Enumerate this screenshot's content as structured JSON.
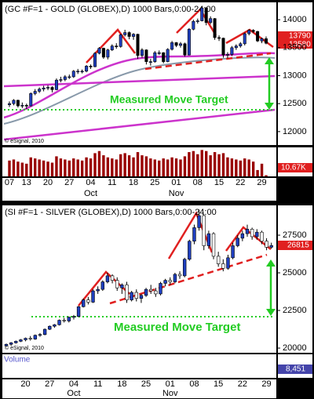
{
  "chart_data": [
    {
      "type": "candlestick",
      "title": "(GC #F=1 - GOLD (GLOBEX),D) 1000 Bars,0:00-24:00",
      "categories": [
        "07",
        null,
        null,
        null,
        "13",
        null,
        null,
        null,
        null,
        "20",
        null,
        null,
        null,
        null,
        "27",
        null,
        null,
        null,
        null,
        "04",
        null,
        null,
        null,
        null,
        "11",
        null,
        null,
        null,
        null,
        "18",
        null,
        null,
        null,
        null,
        "25",
        null,
        null,
        null,
        null,
        "01",
        null,
        null,
        null,
        null,
        "08",
        null,
        null,
        null,
        null,
        "15",
        null,
        null,
        null,
        null,
        "22",
        null,
        null,
        null,
        null,
        "29",
        null
      ],
      "months": [
        null,
        null,
        null,
        null,
        null,
        null,
        null,
        null,
        null,
        null,
        null,
        null,
        null,
        null,
        null,
        null,
        null,
        null,
        null,
        "Oct",
        null,
        null,
        null,
        null,
        null,
        null,
        null,
        null,
        null,
        null,
        null,
        null,
        null,
        null,
        null,
        null,
        null,
        null,
        null,
        "Nov",
        null,
        null,
        null,
        null,
        null,
        null,
        null,
        null,
        null,
        null,
        null,
        null,
        null,
        null,
        null,
        null,
        null,
        null,
        null,
        null,
        null
      ],
      "ohlc": [
        [
          12480,
          12540,
          12440,
          12500
        ],
        [
          12500,
          12580,
          12470,
          12560
        ],
        [
          12560,
          12570,
          12430,
          12460
        ],
        [
          12460,
          12520,
          12420,
          12470
        ],
        [
          12470,
          12500,
          12400,
          12460
        ],
        [
          12460,
          12700,
          12450,
          12680
        ],
        [
          12680,
          12760,
          12650,
          12720
        ],
        [
          12720,
          12790,
          12690,
          12760
        ],
        [
          12760,
          12820,
          12720,
          12780
        ],
        [
          12780,
          12830,
          12740,
          12790
        ],
        [
          12790,
          12810,
          12700,
          12750
        ],
        [
          12750,
          12950,
          12740,
          12920
        ],
        [
          12920,
          12980,
          12880,
          12930
        ],
        [
          12930,
          13010,
          12900,
          12980
        ],
        [
          12980,
          13020,
          12940,
          12980
        ],
        [
          12980,
          13100,
          12960,
          13080
        ],
        [
          13080,
          13120,
          13030,
          13080
        ],
        [
          13080,
          13110,
          13040,
          13080
        ],
        [
          13080,
          13190,
          13060,
          13170
        ],
        [
          13170,
          13200,
          13120,
          13160
        ],
        [
          13160,
          13420,
          13150,
          13400
        ],
        [
          13400,
          13510,
          13380,
          13490
        ],
        [
          13490,
          13500,
          13300,
          13330
        ],
        [
          13330,
          13480,
          13290,
          13460
        ],
        [
          13460,
          13560,
          13440,
          13530
        ],
        [
          13530,
          13580,
          13480,
          13520
        ],
        [
          13520,
          13750,
          13500,
          13730
        ],
        [
          13730,
          13820,
          13700,
          13770
        ],
        [
          13770,
          13790,
          13650,
          13700
        ],
        [
          13700,
          13760,
          13640,
          13740
        ],
        [
          13740,
          13750,
          13300,
          13360
        ],
        [
          13360,
          13490,
          13320,
          13460
        ],
        [
          13460,
          13470,
          13200,
          13250
        ],
        [
          13250,
          13300,
          13180,
          13250
        ],
        [
          13250,
          13440,
          13230,
          13410
        ],
        [
          13410,
          13450,
          13370,
          13410
        ],
        [
          13410,
          13420,
          13220,
          13250
        ],
        [
          13250,
          13490,
          13240,
          13470
        ],
        [
          13470,
          13620,
          13450,
          13590
        ],
        [
          13590,
          13600,
          13510,
          13540
        ],
        [
          13540,
          13600,
          13500,
          13570
        ],
        [
          13570,
          13590,
          13340,
          13370
        ],
        [
          13370,
          13850,
          13360,
          13830
        ],
        [
          13830,
          14000,
          13810,
          13970
        ],
        [
          13970,
          14020,
          13930,
          13980
        ],
        [
          13980,
          14240,
          13970,
          14210
        ],
        [
          14210,
          14220,
          13900,
          13950
        ],
        [
          13950,
          14060,
          13920,
          14020
        ],
        [
          14020,
          14030,
          13640,
          13680
        ],
        [
          13680,
          13720,
          13620,
          13670
        ],
        [
          13670,
          13680,
          13320,
          13370
        ],
        [
          13370,
          13420,
          13310,
          13380
        ],
        [
          13380,
          13530,
          13350,
          13500
        ],
        [
          13500,
          13560,
          13460,
          13530
        ],
        [
          13530,
          13600,
          13500,
          13570
        ],
        [
          13570,
          13770,
          13540,
          13750
        ],
        [
          13750,
          13830,
          13720,
          13810
        ],
        [
          13810,
          13830,
          13760,
          13790
        ],
        [
          13790,
          13800,
          13600,
          13620
        ],
        [
          13620,
          13680,
          13580,
          13660
        ],
        [
          13660,
          13700,
          13560,
          13580
        ]
      ],
      "up_color": "#1f3fbf",
      "down_color": "#000000",
      "ylim": [
        11760,
        14310
      ],
      "yticks": [
        12000,
        12500,
        13000,
        13500,
        14000
      ],
      "readouts": [
        "13790",
        "13580"
      ],
      "annotation": "Measured Move Target",
      "copyright": "© eSignal, 2010",
      "volume": {
        "values": [
          150,
          160,
          140,
          130,
          120,
          180,
          170,
          160,
          150,
          140,
          130,
          190,
          170,
          160,
          150,
          170,
          160,
          150,
          180,
          170,
          220,
          240,
          200,
          180,
          170,
          160,
          210,
          220,
          200,
          180,
          230,
          200,
          190,
          170,
          160,
          150,
          170,
          160,
          180,
          170,
          160,
          190,
          230,
          240,
          210,
          250,
          240,
          200,
          230,
          210,
          220,
          180,
          170,
          160,
          150,
          170,
          160,
          140,
          60,
          120,
          10.67
        ],
        "ylim": [
          0,
          260
        ],
        "color": "#990000",
        "readout": "10.67K"
      }
    },
    {
      "type": "candlestick",
      "title": "(SI #F=1 - SILVER (GLOBEX),D) 1000 Bars,0:00-24:00",
      "categories": [
        null,
        null,
        null,
        null,
        "20",
        null,
        null,
        null,
        null,
        "27",
        null,
        null,
        null,
        null,
        "04",
        null,
        null,
        null,
        null,
        "11",
        null,
        null,
        null,
        null,
        "18",
        null,
        null,
        null,
        null,
        "25",
        null,
        null,
        null,
        null,
        "01",
        null,
        null,
        null,
        null,
        "08",
        null,
        null,
        null,
        null,
        "15",
        null,
        null,
        null,
        null,
        "22",
        null,
        null,
        null,
        null,
        "29",
        null
      ],
      "months": [
        null,
        null,
        null,
        null,
        null,
        null,
        null,
        null,
        null,
        null,
        null,
        null,
        null,
        null,
        "Oct",
        null,
        null,
        null,
        null,
        null,
        null,
        null,
        null,
        null,
        null,
        null,
        null,
        null,
        null,
        null,
        null,
        null,
        null,
        null,
        "Nov",
        null,
        null,
        null,
        null,
        null,
        null,
        null,
        null,
        null,
        null,
        null,
        null,
        null,
        null,
        null,
        null,
        null,
        null,
        null,
        null,
        null
      ],
      "ohlc": [
        [
          20150,
          20300,
          20100,
          20250
        ],
        [
          20250,
          20400,
          20150,
          20350
        ],
        [
          20350,
          20500,
          20300,
          20450
        ],
        [
          20450,
          20600,
          20400,
          20550
        ],
        [
          20550,
          20700,
          20450,
          20650
        ],
        [
          20650,
          20800,
          20500,
          20600
        ],
        [
          20600,
          20900,
          20550,
          20850
        ],
        [
          20850,
          21000,
          20750,
          20900
        ],
        [
          20900,
          21300,
          20850,
          21250
        ],
        [
          21250,
          21500,
          21200,
          21450
        ],
        [
          21450,
          21600,
          21350,
          21550
        ],
        [
          21550,
          21900,
          21500,
          21850
        ],
        [
          21850,
          22000,
          21700,
          21800
        ],
        [
          21800,
          22100,
          21700,
          22050
        ],
        [
          22050,
          22200,
          21900,
          22100
        ],
        [
          22100,
          22800,
          22050,
          22750
        ],
        [
          22750,
          23300,
          22700,
          23200
        ],
        [
          23200,
          23400,
          22900,
          23050
        ],
        [
          23050,
          23900,
          23000,
          23800
        ],
        [
          23800,
          24100,
          23600,
          23900
        ],
        [
          23900,
          24500,
          23800,
          24400
        ],
        [
          24400,
          25000,
          24300,
          24800
        ],
        [
          24800,
          24900,
          24300,
          24500
        ],
        [
          24500,
          24700,
          23800,
          24000
        ],
        [
          24000,
          24300,
          23600,
          24200
        ],
        [
          24200,
          24400,
          23000,
          23200
        ],
        [
          23200,
          23800,
          23100,
          23700
        ],
        [
          23700,
          23900,
          23100,
          23300
        ],
        [
          23300,
          23600,
          23000,
          23500
        ],
        [
          23500,
          24000,
          23400,
          23900
        ],
        [
          23900,
          24200,
          23600,
          23800
        ],
        [
          23800,
          24000,
          23400,
          23600
        ],
        [
          23600,
          24400,
          23500,
          24300
        ],
        [
          24300,
          24600,
          24100,
          24500
        ],
        [
          24500,
          24700,
          24200,
          24400
        ],
        [
          24400,
          25000,
          24300,
          24900
        ],
        [
          24900,
          25100,
          24600,
          24800
        ],
        [
          24800,
          26000,
          24700,
          25900
        ],
        [
          25900,
          27200,
          25800,
          27100
        ],
        [
          27100,
          28200,
          26900,
          28000
        ],
        [
          28000,
          29200,
          27800,
          28800
        ],
        [
          28800,
          28900,
          26500,
          26800
        ],
        [
          26800,
          27800,
          26600,
          27600
        ],
        [
          27600,
          27700,
          25900,
          26100
        ],
        [
          26100,
          26400,
          25400,
          25600
        ],
        [
          25600,
          25900,
          25100,
          25300
        ],
        [
          25300,
          26200,
          25200,
          26000
        ],
        [
          26000,
          27000,
          25900,
          26800
        ],
        [
          26800,
          27500,
          26700,
          27300
        ],
        [
          27300,
          27800,
          27100,
          27600
        ],
        [
          27600,
          28200,
          27400,
          27900
        ],
        [
          27900,
          28000,
          27200,
          27400
        ],
        [
          27400,
          27900,
          27200,
          27700
        ],
        [
          27700,
          27800,
          26900,
          27100
        ],
        [
          27100,
          27300,
          26500,
          26700
        ],
        [
          26700,
          27000,
          26600,
          26815
        ]
      ],
      "up_color": "#1f3fbf",
      "down_color": "#ffffff",
      "ylim": [
        19690,
        29480
      ],
      "yticks": [
        20000,
        22500,
        25000,
        27500
      ],
      "readouts": [
        "26815"
      ],
      "annotation": "Measured Move Target",
      "copyright": "© eSignal, 2010",
      "volume": {
        "label": "Volume",
        "readout": "8,451"
      }
    }
  ]
}
